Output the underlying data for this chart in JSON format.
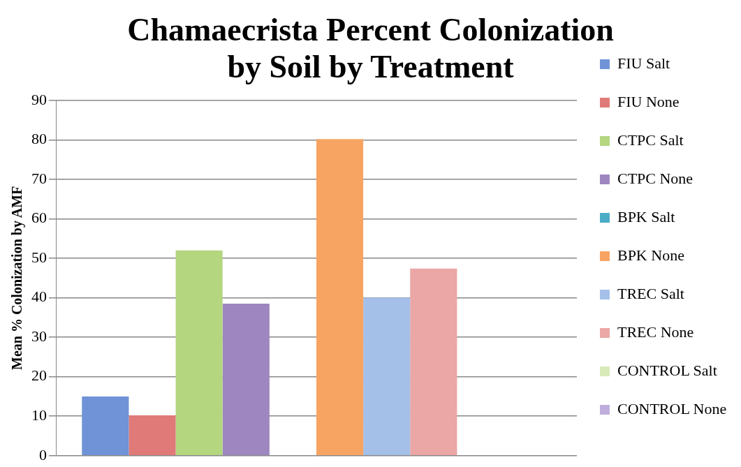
{
  "chart_data": {
    "type": "bar",
    "title": "Chamaecrista Percent Colonization\nby Soil by Treatment",
    "ylabel": "Mean % Colonization by AMF",
    "categories": [
      null
    ],
    "series": [
      {
        "name": "FIU Salt",
        "color": "#6f93d6",
        "values": [
          15
        ]
      },
      {
        "name": "FIU None",
        "color": "#e07a78",
        "values": [
          10.2
        ]
      },
      {
        "name": "CTPC Salt",
        "color": "#b3d67f",
        "values": [
          52
        ]
      },
      {
        "name": "CTPC None",
        "color": "#9e86c0",
        "values": [
          38.5
        ]
      },
      {
        "name": "BPK Salt",
        "color": "#4bacc6",
        "values": [
          null
        ]
      },
      {
        "name": "BPK None",
        "color": "#f7a462",
        "values": [
          80.2
        ]
      },
      {
        "name": "TREC Salt",
        "color": "#a4bfe8",
        "values": [
          40
        ]
      },
      {
        "name": "TREC None",
        "color": "#eba6a6",
        "values": [
          47.4
        ]
      },
      {
        "name": "CONTROL Salt",
        "color": "#d7eab8",
        "values": [
          null
        ]
      },
      {
        "name": "CONTROL None",
        "color": "#bfaedb",
        "values": [
          null
        ]
      }
    ],
    "ylim": [
      0,
      90
    ],
    "yticks": [
      0,
      10,
      20,
      30,
      40,
      50,
      60,
      70,
      80,
      90
    ],
    "grid": "y",
    "legend": "right"
  }
}
